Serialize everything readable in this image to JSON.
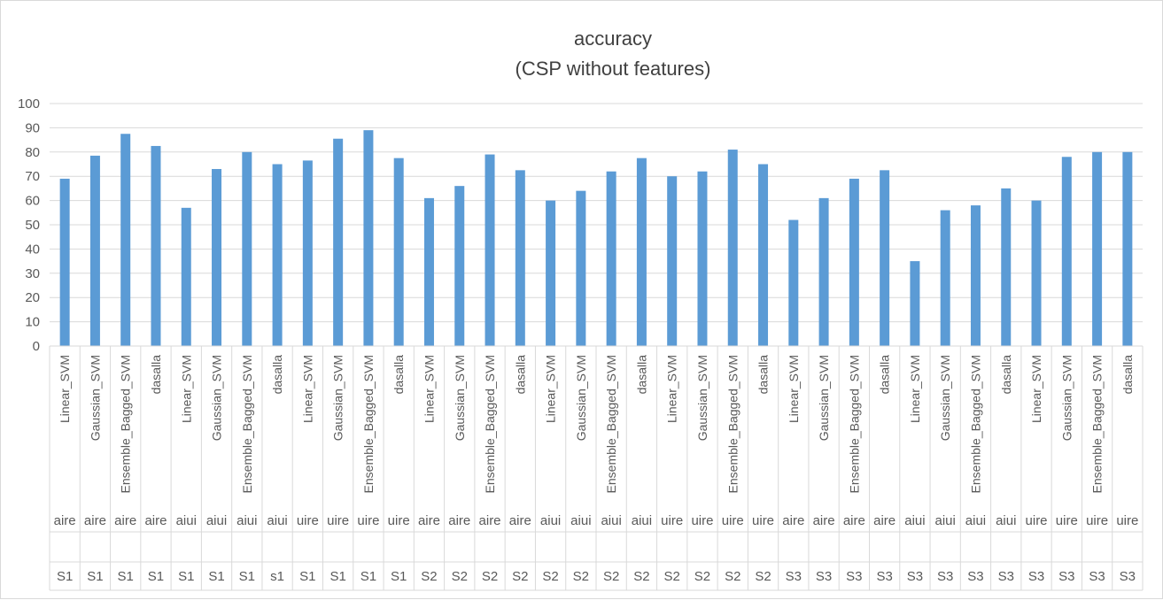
{
  "chart_data": {
    "type": "bar",
    "title": "accuracy",
    "subtitle": "(CSP without features)",
    "xlabel": "",
    "ylabel": "",
    "ylim": [
      0,
      100
    ],
    "yticks": [
      0,
      10,
      20,
      30,
      40,
      50,
      60,
      70,
      80,
      90,
      100
    ],
    "grid": true,
    "legend": "none",
    "bar_color": "#5b9bd5",
    "categories": [
      {
        "classifier": "Linear_SVM",
        "task": "aire",
        "subject": "S1"
      },
      {
        "classifier": "Gaussian_SVM",
        "task": "aire",
        "subject": "S1"
      },
      {
        "classifier": "Ensemble_Bagged_SVM",
        "task": "aire",
        "subject": "S1"
      },
      {
        "classifier": "dasalla",
        "task": "aire",
        "subject": "S1"
      },
      {
        "classifier": "Linear_SVM",
        "task": "aiui",
        "subject": "S1"
      },
      {
        "classifier": "Gaussian_SVM",
        "task": "aiui",
        "subject": "S1"
      },
      {
        "classifier": "Ensemble_Bagged_SVM",
        "task": "aiui",
        "subject": "S1"
      },
      {
        "classifier": "dasalla",
        "task": "aiui",
        "subject": "s1"
      },
      {
        "classifier": "Linear_SVM",
        "task": "uire",
        "subject": "S1"
      },
      {
        "classifier": "Gaussian_SVM",
        "task": "uire",
        "subject": "S1"
      },
      {
        "classifier": "Ensemble_Bagged_SVM",
        "task": "uire",
        "subject": "S1"
      },
      {
        "classifier": "dasalla",
        "task": "uire",
        "subject": "S1"
      },
      {
        "classifier": "Linear_SVM",
        "task": "aire",
        "subject": "S2"
      },
      {
        "classifier": "Gaussian_SVM",
        "task": "aire",
        "subject": "S2"
      },
      {
        "classifier": "Ensemble_Bagged_SVM",
        "task": "aire",
        "subject": "S2"
      },
      {
        "classifier": "dasalla",
        "task": "aire",
        "subject": "S2"
      },
      {
        "classifier": "Linear_SVM",
        "task": "aiui",
        "subject": "S2"
      },
      {
        "classifier": "Gaussian_SVM",
        "task": "aiui",
        "subject": "S2"
      },
      {
        "classifier": "Ensemble_Bagged_SVM",
        "task": "aiui",
        "subject": "S2"
      },
      {
        "classifier": "dasalla",
        "task": "aiui",
        "subject": "S2"
      },
      {
        "classifier": "Linear_SVM",
        "task": "uire",
        "subject": "S2"
      },
      {
        "classifier": "Gaussian_SVM",
        "task": "uire",
        "subject": "S2"
      },
      {
        "classifier": "Ensemble_Bagged_SVM",
        "task": "uire",
        "subject": "S2"
      },
      {
        "classifier": "dasalla",
        "task": "uire",
        "subject": "S2"
      },
      {
        "classifier": "Linear_SVM",
        "task": "aire",
        "subject": "S3"
      },
      {
        "classifier": "Gaussian_SVM",
        "task": "aire",
        "subject": "S3"
      },
      {
        "classifier": "Ensemble_Bagged_SVM",
        "task": "aire",
        "subject": "S3"
      },
      {
        "classifier": "dasalla",
        "task": "aire",
        "subject": "S3"
      },
      {
        "classifier": "Linear_SVM",
        "task": "aiui",
        "subject": "S3"
      },
      {
        "classifier": "Gaussian_SVM",
        "task": "aiui",
        "subject": "S3"
      },
      {
        "classifier": "Ensemble_Bagged_SVM",
        "task": "aiui",
        "subject": "S3"
      },
      {
        "classifier": "dasalla",
        "task": "aiui",
        "subject": "S3"
      },
      {
        "classifier": "Linear_SVM",
        "task": "uire",
        "subject": "S3"
      },
      {
        "classifier": "Gaussian_SVM",
        "task": "uire",
        "subject": "S3"
      },
      {
        "classifier": "Ensemble_Bagged_SVM",
        "task": "uire",
        "subject": "S3"
      },
      {
        "classifier": "dasalla",
        "task": "uire",
        "subject": "S3"
      }
    ],
    "values": [
      69,
      78.5,
      87.5,
      82.5,
      57,
      73,
      80,
      75,
      76.5,
      85.5,
      89,
      77.5,
      61,
      66,
      79,
      72.5,
      60,
      64,
      72,
      77.5,
      70,
      72,
      81,
      75,
      52,
      61,
      69,
      72.5,
      35,
      56,
      58,
      65,
      60,
      78,
      80,
      80
    ]
  }
}
